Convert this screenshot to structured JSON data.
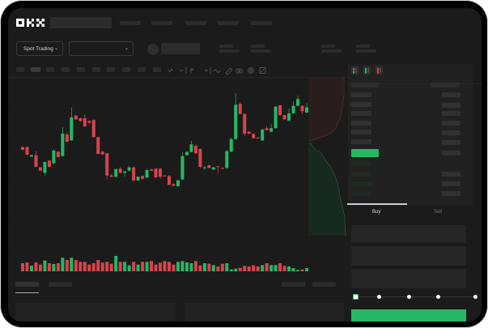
{
  "brand": {
    "logo": "OKX"
  },
  "header": {
    "trading_mode": "Spot Trading",
    "pair_select_chevron": "chevron-down-icon"
  },
  "toolbar": {
    "icons": [
      "indicator-icon",
      "chevron-down-icon",
      "drawing-icon",
      "chevron-down-icon",
      "line-icon",
      "ruler-icon",
      "camera-icon",
      "settings-icon",
      "fullscreen-icon"
    ]
  },
  "orderbook": {
    "view_icons": [
      "orderbook-both-icon",
      "orderbook-bids-icon",
      "orderbook-asks-icon"
    ]
  },
  "trade": {
    "tabs": [
      {
        "label": "Buy",
        "active": true
      },
      {
        "label": "Sell",
        "active": false
      }
    ],
    "slider_level": 0
  },
  "colors": {
    "up": "#25b864",
    "down": "#d9434b",
    "background": "#1b1b1b",
    "accent": "#25b864"
  },
  "chart_data": {
    "type": "candlestick",
    "candles": [
      [
        46.3,
        46.8,
        43.3,
        43.8
      ],
      [
        46.3,
        46.8,
        38.8,
        39.3
      ],
      [
        37.5,
        39.3,
        37,
        38.8
      ],
      [
        38.8,
        42.5,
        27.5,
        28
      ],
      [
        27.5,
        28,
        24,
        24.5
      ],
      [
        22.5,
        33,
        20,
        32.5
      ],
      [
        33.8,
        34.3,
        27.5,
        28
      ],
      [
        31.3,
        44.5,
        30.5,
        43
      ],
      [
        42,
        42.5,
        36.5,
        37
      ],
      [
        38,
        64.5,
        37.5,
        58.8
      ],
      [
        58,
        60,
        50.8,
        51.3
      ],
      [
        52.5,
        83,
        52,
        73.8
      ],
      [
        75.5,
        76,
        71.5,
        72
      ],
      [
        73,
        73.5,
        69.5,
        70.5
      ],
      [
        73,
        76.3,
        65,
        65.5
      ],
      [
        70.5,
        71,
        68.3,
        68.8
      ],
      [
        71.3,
        72,
        55,
        55.5
      ],
      [
        55.5,
        56,
        39.5,
        40
      ],
      [
        42,
        43,
        39,
        39.5
      ],
      [
        40.5,
        41,
        16.3,
        20
      ],
      [
        20,
        21.5,
        18.3,
        18.8
      ],
      [
        18.8,
        26.5,
        18,
        25.8
      ],
      [
        26.3,
        28,
        21.5,
        22.5
      ],
      [
        22.5,
        24,
        19,
        23.8
      ],
      [
        24.5,
        29,
        24,
        27.5
      ],
      [
        27.5,
        28,
        13.5,
        15.5
      ],
      [
        15.5,
        19.3,
        15,
        18.8
      ],
      [
        19.5,
        20,
        15.5,
        17
      ],
      [
        18,
        26,
        17.5,
        25
      ],
      [
        25.5,
        26.5,
        24,
        24.3
      ],
      [
        26.3,
        26.8,
        17.5,
        18.3
      ],
      [
        26.3,
        27,
        17,
        18.8
      ],
      [
        20,
        20.3,
        19,
        19.3
      ],
      [
        19.5,
        20.5,
        11,
        11.3
      ],
      [
        12,
        12.5,
        10,
        10.5
      ],
      [
        10,
        16,
        9.5,
        15.5
      ],
      [
        16.3,
        41.3,
        15.5,
        38
      ],
      [
        38.8,
        42.5,
        38.3,
        41.8
      ],
      [
        41.8,
        52,
        41.3,
        48.8
      ],
      [
        47.5,
        48.5,
        40,
        40.5
      ],
      [
        44.5,
        45,
        26.5,
        28
      ],
      [
        26.8,
        29,
        25,
        27.5
      ],
      [
        29.5,
        30,
        26.5,
        27
      ],
      [
        25.5,
        28,
        25,
        27.5
      ],
      [
        28.5,
        29,
        21.8,
        28
      ],
      [
        27,
        27.5,
        25.8,
        26.3
      ],
      [
        27,
        44,
        26.5,
        42.5
      ],
      [
        42,
        55,
        41.5,
        53.8
      ],
      [
        53.8,
        96.3,
        53,
        85.5
      ],
      [
        86.3,
        88,
        76.5,
        77
      ],
      [
        77,
        77.5,
        56.5,
        58.8
      ],
      [
        60.5,
        61.5,
        58,
        58.8
      ],
      [
        58.5,
        59,
        54,
        54.5
      ],
      [
        55,
        56,
        54,
        54.3
      ],
      [
        52.5,
        63.5,
        52,
        62.5
      ],
      [
        63.8,
        66,
        61.5,
        62
      ],
      [
        60.5,
        67.5,
        60,
        63.8
      ],
      [
        63.8,
        84.5,
        63.3,
        83.8
      ],
      [
        85,
        85.5,
        75,
        75.8
      ],
      [
        75.8,
        76.3,
        71.5,
        72
      ],
      [
        70.8,
        82,
        70.3,
        77.5
      ],
      [
        77.5,
        89,
        77,
        84.5
      ],
      [
        84.5,
        94,
        84,
        90.8
      ],
      [
        84.5,
        85,
        77,
        79.5
      ],
      [
        78.3,
        87,
        77.8,
        83
      ]
    ],
    "volume": [
      30,
      33,
      21,
      33,
      25,
      40,
      30,
      27,
      30,
      50,
      42,
      50,
      42,
      35,
      35,
      25,
      30,
      42,
      32,
      35,
      28,
      57,
      35,
      35,
      22,
      35,
      25,
      35,
      35,
      38,
      25,
      32,
      38,
      35,
      25,
      35,
      38,
      33,
      30,
      38,
      22,
      30,
      28,
      23,
      18,
      28,
      30,
      7,
      10,
      13,
      20,
      18,
      22,
      18,
      23,
      30,
      23,
      23,
      30,
      20,
      18,
      12,
      5,
      7,
      12
    ],
    "grid": true
  }
}
